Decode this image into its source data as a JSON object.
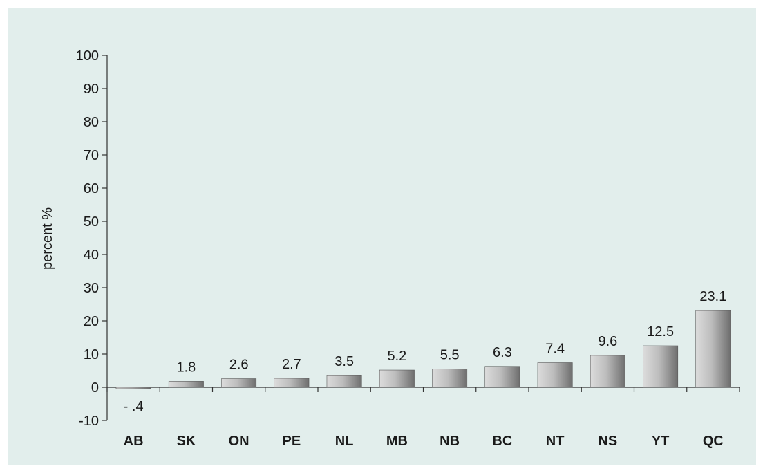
{
  "chart_data": {
    "type": "bar",
    "title": "",
    "xlabel": "",
    "ylabel": "percent %",
    "ylim": [
      -10,
      100
    ],
    "yticks": [
      -10,
      0,
      10,
      20,
      30,
      40,
      50,
      60,
      70,
      80,
      90,
      100
    ],
    "categories": [
      "AB",
      "SK",
      "ON",
      "PE",
      "NL",
      "MB",
      "NB",
      "BC",
      "NT",
      "NS",
      "YT",
      "QC"
    ],
    "values": [
      -0.4,
      1.8,
      2.6,
      2.7,
      3.5,
      5.2,
      5.5,
      6.3,
      7.4,
      9.6,
      12.5,
      23.1
    ],
    "value_labels": [
      "- .4",
      "1.8",
      "2.6",
      "2.7",
      "3.5",
      "5.2",
      "5.5",
      "6.3",
      "7.4",
      "9.6",
      "12.5",
      "23.1"
    ],
    "grid": false,
    "legend": "none",
    "colors": {
      "background": "#e2eeec",
      "bar_light": "#d6d6d6",
      "bar_dark": "#707070",
      "axis": "#333333"
    }
  }
}
